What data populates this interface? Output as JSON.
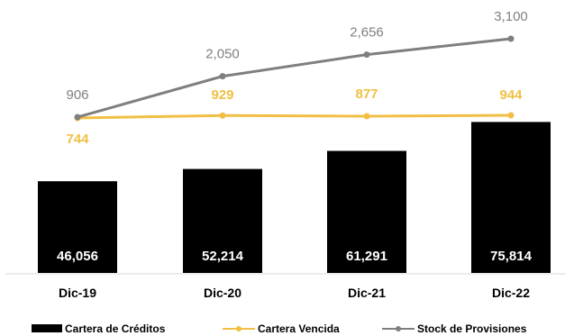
{
  "chart_data": {
    "type": "bar",
    "categories": [
      "Dic-19",
      "Dic-20",
      "Dic-21",
      "Dic-22"
    ],
    "series": [
      {
        "name": "Cartera de Créditos",
        "type": "bar",
        "values": [
          46056,
          52214,
          61291,
          75814
        ],
        "labels": [
          "46,056",
          "52,214",
          "61,291",
          "75,814"
        ],
        "color": "#000000"
      },
      {
        "name": "Cartera Vencida",
        "type": "line",
        "values": [
          744,
          929,
          877,
          944
        ],
        "labels": [
          "744",
          "929",
          "877",
          "944"
        ],
        "color": "#f0bf44"
      },
      {
        "name": "Stock de Provisiones",
        "type": "line",
        "values": [
          906,
          2050,
          2656,
          3100
        ],
        "labels": [
          "906",
          "2,050",
          "2,656",
          "3,100"
        ],
        "color": "#7f7f7f"
      }
    ],
    "legend_position": "bottom",
    "gridlines": false
  }
}
